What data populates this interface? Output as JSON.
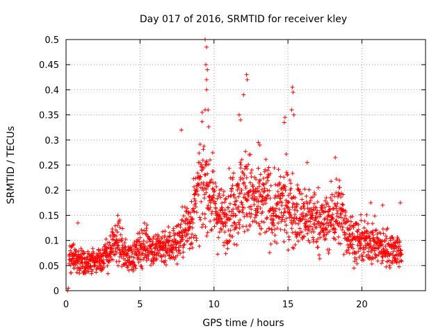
{
  "chart_data": {
    "type": "scatter",
    "title": "Day 017 of 2016, SRMTID for receiver kley",
    "xlabel": "GPS time / hours",
    "ylabel": "SRMTID / TECUs",
    "xlim": [
      0,
      24.3
    ],
    "ylim": [
      0,
      0.5
    ],
    "xticks": [
      0,
      5,
      10,
      15,
      20
    ],
    "xtick_labels": [
      "0",
      "5",
      "10",
      "15",
      "20"
    ],
    "yticks": [
      0,
      0.05,
      0.1,
      0.15,
      0.2,
      0.25,
      0.3,
      0.35,
      0.4,
      0.45,
      0.5
    ],
    "ytick_labels": [
      "0",
      "0.05",
      "0.1",
      "0.15",
      "0.2",
      "0.25",
      "0.3",
      "0.35",
      "0.4",
      "0.45",
      "0.5"
    ],
    "grid": true,
    "marker": "+",
    "color": "#ff0000",
    "x_range_of_data": [
      0,
      22.7
    ],
    "series": [
      {
        "name": "SRMTID",
        "envelope": [
          [
            0.0,
            0.06
          ],
          [
            0.5,
            0.065
          ],
          [
            1.0,
            0.06
          ],
          [
            1.5,
            0.055
          ],
          [
            2.0,
            0.06
          ],
          [
            2.5,
            0.065
          ],
          [
            3.0,
            0.08
          ],
          [
            3.5,
            0.1
          ],
          [
            4.0,
            0.07
          ],
          [
            4.5,
            0.065
          ],
          [
            5.0,
            0.085
          ],
          [
            5.5,
            0.095
          ],
          [
            6.0,
            0.08
          ],
          [
            6.5,
            0.09
          ],
          [
            7.0,
            0.09
          ],
          [
            7.5,
            0.095
          ],
          [
            8.0,
            0.12
          ],
          [
            8.5,
            0.14
          ],
          [
            9.0,
            0.2
          ],
          [
            9.5,
            0.22
          ],
          [
            10.0,
            0.17
          ],
          [
            10.5,
            0.14
          ],
          [
            11.0,
            0.16
          ],
          [
            11.5,
            0.18
          ],
          [
            12.0,
            0.2
          ],
          [
            12.5,
            0.19
          ],
          [
            13.0,
            0.16
          ],
          [
            13.5,
            0.19
          ],
          [
            14.0,
            0.15
          ],
          [
            14.5,
            0.17
          ],
          [
            15.0,
            0.17
          ],
          [
            15.5,
            0.16
          ],
          [
            16.0,
            0.14
          ],
          [
            16.5,
            0.15
          ],
          [
            17.0,
            0.14
          ],
          [
            17.5,
            0.13
          ],
          [
            18.0,
            0.15
          ],
          [
            18.5,
            0.16
          ],
          [
            19.0,
            0.12
          ],
          [
            19.5,
            0.1
          ],
          [
            20.0,
            0.095
          ],
          [
            20.5,
            0.1
          ],
          [
            21.0,
            0.09
          ],
          [
            21.5,
            0.085
          ],
          [
            22.0,
            0.085
          ],
          [
            22.5,
            0.08
          ],
          [
            22.7,
            0.08
          ]
        ],
        "peaks": [
          [
            0.1,
            0.0
          ],
          [
            0.15,
            0.005
          ],
          [
            0.8,
            0.135
          ],
          [
            3.5,
            0.15
          ],
          [
            7.8,
            0.32
          ],
          [
            9.4,
            0.5
          ],
          [
            9.5,
            0.485
          ],
          [
            9.45,
            0.45
          ],
          [
            9.55,
            0.44
          ],
          [
            9.5,
            0.42
          ],
          [
            9.5,
            0.4
          ],
          [
            9.2,
            0.355
          ],
          [
            9.4,
            0.36
          ],
          [
            9.6,
            0.36
          ],
          [
            12.2,
            0.43
          ],
          [
            12.25,
            0.42
          ],
          [
            12.0,
            0.39
          ],
          [
            11.7,
            0.35
          ],
          [
            11.8,
            0.34
          ],
          [
            13.0,
            0.295
          ],
          [
            13.1,
            0.29
          ],
          [
            15.3,
            0.405
          ],
          [
            15.35,
            0.395
          ],
          [
            15.25,
            0.36
          ],
          [
            15.4,
            0.35
          ],
          [
            14.8,
            0.345
          ],
          [
            14.75,
            0.335
          ],
          [
            16.3,
            0.255
          ],
          [
            18.2,
            0.265
          ],
          [
            20.6,
            0.175
          ],
          [
            21.4,
            0.17
          ],
          [
            22.6,
            0.175
          ]
        ]
      }
    ]
  }
}
